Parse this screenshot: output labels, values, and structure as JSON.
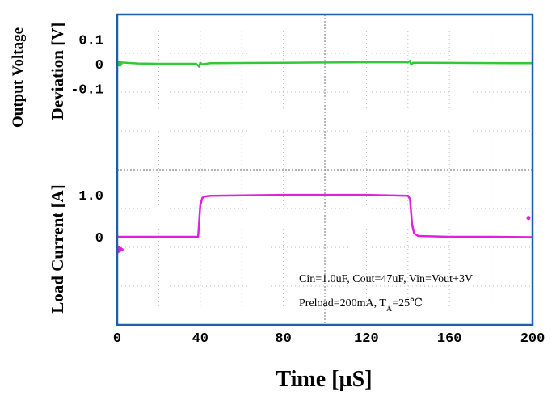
{
  "chart_data": {
    "type": "line",
    "xlabel": "Time [µS]",
    "x_ticks": [
      "0",
      "40",
      "80",
      "120",
      "160",
      "200"
    ],
    "xlim": [
      0,
      200
    ],
    "panels": [
      {
        "ylabel_line1": "Output Voltage",
        "ylabel_line2": "Deviation [V]",
        "y_ticks": [
          {
            "label": "0.1",
            "value": 0.1
          },
          {
            "label": "0",
            "value": 0
          },
          {
            "label": "-0.1",
            "value": -0.1
          }
        ],
        "ylim": [
          -0.43,
          0.2
        ],
        "series": [
          {
            "color": "#34c934",
            "x": [
              0,
              2,
              10,
              20,
              30,
              38,
              39.5,
              40,
              41,
              45,
              60,
              80,
              100,
              120,
              140,
              141,
              141.5,
              142.5,
              150,
              170,
              190,
              200
            ],
            "y": [
              0,
              0.005,
              0.001,
              0,
              0,
              0,
              -0.012,
              0.004,
              -0.002,
              0.002,
              0.003,
              0.004,
              0.005,
              0.006,
              0.006,
              0.012,
              -0.004,
              0.004,
              0.004,
              0.003,
              0.002,
              0.002
            ]
          }
        ]
      },
      {
        "ylabel": "Load Current [A]",
        "y_ticks": [
          {
            "label": "1.0",
            "value": 1.0
          },
          {
            "label": "0",
            "value": 0
          }
        ],
        "ylim": [
          -2.1,
          1.6
        ],
        "series": [
          {
            "color": "#e020e0",
            "x": [
              0,
              39,
              40,
              41,
              42,
              45,
              60,
              80,
              100,
              120,
              140,
              141,
              142,
              143,
              145,
              160,
              180,
              200
            ],
            "y": [
              0,
              0,
              0.75,
              0.93,
              0.96,
              0.98,
              0.99,
              1.0,
              1.0,
              1.0,
              0.98,
              0.9,
              0.3,
              0.08,
              0.02,
              0.0,
              0.0,
              -0.01
            ]
          }
        ]
      }
    ],
    "annotations": [
      "Cin=1.0uF, Cout=47uF, Vin=Vout+3V",
      {
        "prefix": "Preload=200mA, T",
        "subscript": "A",
        "suffix": "=25℃"
      }
    ],
    "grid": true
  }
}
